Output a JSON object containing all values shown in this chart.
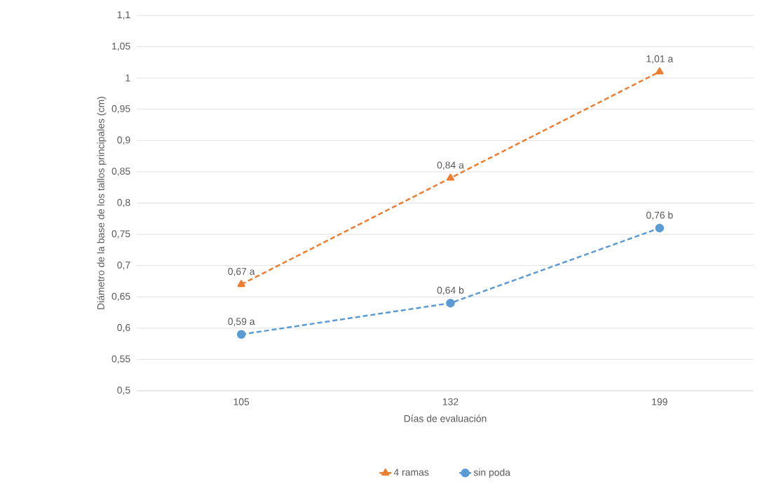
{
  "chart_data": {
    "type": "line",
    "xlabel": "Días de evaluación",
    "ylabel": "Diámetro de la base de los tallos principales (cm)",
    "categories": [
      "105",
      "132",
      "199"
    ],
    "series": [
      {
        "name": "4 ramas",
        "color": "#ed7d31",
        "marker": "triangle",
        "line_style": "dashed",
        "values": [
          0.67,
          0.84,
          1.01
        ],
        "value_labels": [
          "0,67 a",
          "0,84 a",
          "1,01 a"
        ]
      },
      {
        "name": "sin poda",
        "color": "#5b9bd5",
        "marker": "circle",
        "line_style": "dashed",
        "values": [
          0.59,
          0.64,
          0.76
        ],
        "value_labels": [
          "0,59 a",
          "0,64 b",
          "0,76 b"
        ]
      }
    ],
    "ylim": [
      0.5,
      1.1
    ],
    "yticks": [
      {
        "value": 0.5,
        "label": "0,5"
      },
      {
        "value": 0.55,
        "label": "0,55"
      },
      {
        "value": 0.6,
        "label": "0,6"
      },
      {
        "value": 0.65,
        "label": "0,65"
      },
      {
        "value": 0.7,
        "label": "0,7"
      },
      {
        "value": 0.75,
        "label": "0,75"
      },
      {
        "value": 0.8,
        "label": "0,8"
      },
      {
        "value": 0.85,
        "label": "0,85"
      },
      {
        "value": 0.9,
        "label": "0,9"
      },
      {
        "value": 0.95,
        "label": "0,95"
      },
      {
        "value": 1,
        "label": "1"
      },
      {
        "value": 1.05,
        "label": "1,05"
      },
      {
        "value": 1.1,
        "label": "1,1"
      }
    ],
    "grid": "y",
    "legend": "bottom"
  }
}
